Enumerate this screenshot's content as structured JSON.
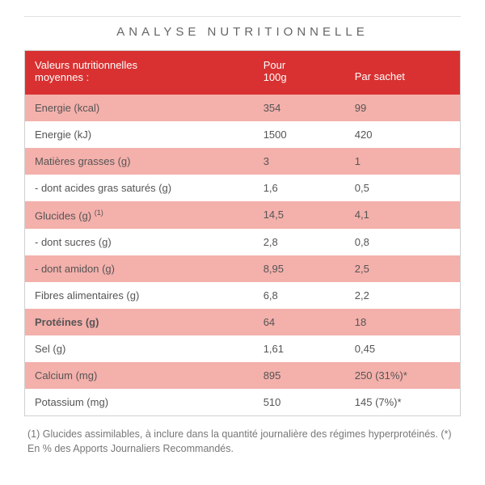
{
  "title": "ANALYSE NUTRITIONNELLE",
  "header": {
    "col1_line1": "Valeurs nutritionnelles",
    "col1_line2": "moyennes :",
    "col2_line1": "Pour",
    "col2_line2": "100g",
    "col3": "Par sachet"
  },
  "rows": [
    {
      "label": "Energie (kcal)",
      "per100g": "354",
      "persachet": "99",
      "shade": "pink",
      "bold": false,
      "sup": ""
    },
    {
      "label": "Energie (kJ)",
      "per100g": "1500",
      "persachet": "420",
      "shade": "white",
      "bold": false,
      "sup": ""
    },
    {
      "label": "Matières grasses (g)",
      "per100g": "3",
      "persachet": "1",
      "shade": "pink",
      "bold": false,
      "sup": ""
    },
    {
      "label": "- dont acides gras saturés (g)",
      "per100g": "1,6",
      "persachet": "0,5",
      "shade": "white",
      "bold": false,
      "sup": ""
    },
    {
      "label": "Glucides (g) ",
      "per100g": "14,5",
      "persachet": "4,1",
      "shade": "pink",
      "bold": false,
      "sup": "(1)"
    },
    {
      "label": "- dont sucres (g)",
      "per100g": "2,8",
      "persachet": "0,8",
      "shade": "white",
      "bold": false,
      "sup": ""
    },
    {
      "label": "- dont amidon (g)",
      "per100g": "8,95",
      "persachet": "2,5",
      "shade": "pink",
      "bold": false,
      "sup": ""
    },
    {
      "label": "Fibres alimentaires (g)",
      "per100g": "6,8",
      "persachet": "2,2",
      "shade": "white",
      "bold": false,
      "sup": ""
    },
    {
      "label": "Protéines (g)",
      "per100g": "64",
      "persachet": "18",
      "shade": "pink",
      "bold": true,
      "sup": ""
    },
    {
      "label": "Sel (g)",
      "per100g": "1,61",
      "persachet": "0,45",
      "shade": "white",
      "bold": false,
      "sup": ""
    },
    {
      "label": "Calcium (mg)",
      "per100g": "895",
      "persachet": "250 (31%)*",
      "shade": "pink",
      "bold": false,
      "sup": ""
    },
    {
      "label": "Potassium (mg)",
      "per100g": "510",
      "persachet": "145 (7%)*",
      "shade": "white",
      "bold": false,
      "sup": ""
    }
  ],
  "footnote": "(1) Glucides assimilables, à inclure dans la quantité journalière des régimes hyperprotéinés. (*) En % des Apports Journaliers Recommandés.",
  "colors": {
    "header_bg": "#d93131",
    "pink_row": "#f4b0ab",
    "white_row": "#ffffff",
    "text": "#555555",
    "border": "#d0d0d0"
  }
}
